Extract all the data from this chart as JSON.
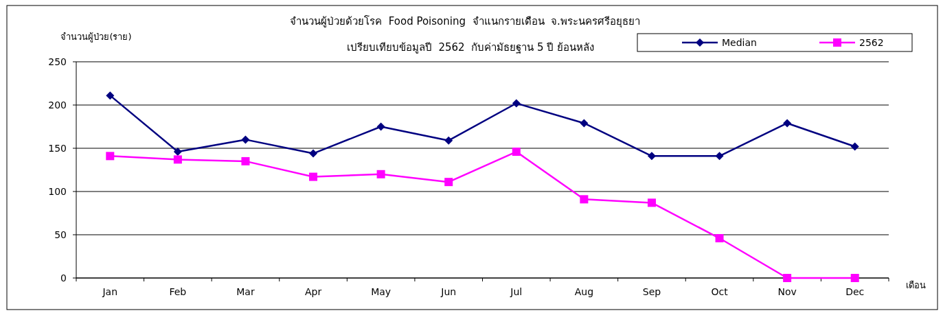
{
  "chart_data": {
    "type": "line",
    "title": "จำนวนผู้ป่วยด้วยโรค  Food Poisoning  จำแนกรายเดือน  จ.พระนครศรีอยุธยา",
    "subtitle": "เปรียบเทียบข้อมูลปี  2562  กับค่ามัธยฐาน 5 ปี ย้อนหลัง",
    "ylabel": "จำนวนผู้ป่วย(ราย)",
    "xlabel": "เดือน",
    "categories": [
      "Jan",
      "Feb",
      "Mar",
      "Apr",
      "May",
      "Jun",
      "Jul",
      "Aug",
      "Sep",
      "Oct",
      "Nov",
      "Dec"
    ],
    "series": [
      {
        "name": "Median",
        "color": "#000080",
        "marker": "diamond",
        "values": [
          211,
          146,
          160,
          144,
          175,
          159,
          202,
          179,
          141,
          141,
          179,
          152
        ]
      },
      {
        "name": "2562",
        "color": "#ff00ff",
        "marker": "square",
        "values": [
          141,
          137,
          135,
          117,
          120,
          111,
          146,
          91,
          87,
          46,
          0,
          0
        ]
      }
    ],
    "ylim": [
      0,
      250
    ],
    "yticks": [
      0,
      50,
      100,
      150,
      200,
      250
    ],
    "grid": "y",
    "legend": "top right",
    "line_style": "solid"
  }
}
